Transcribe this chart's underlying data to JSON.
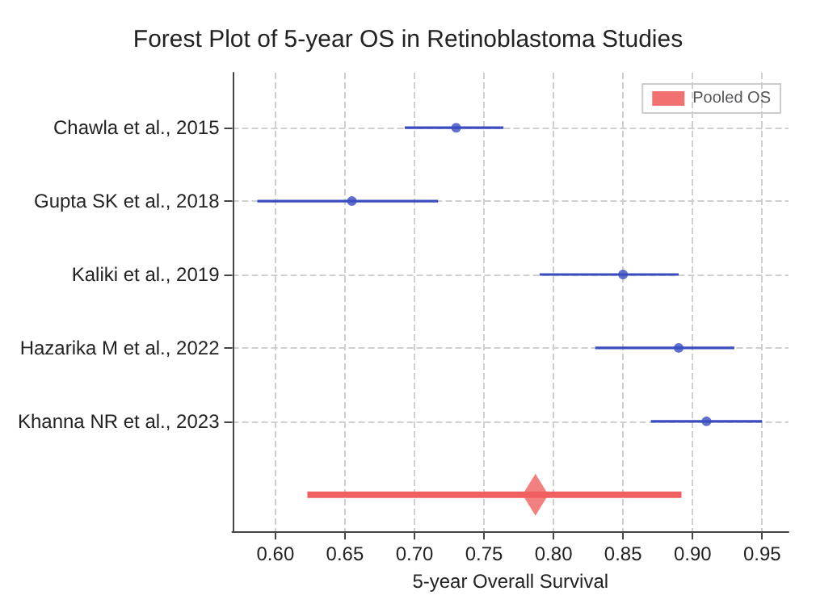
{
  "chart_data": {
    "type": "scatter",
    "title": "Forest Plot of 5-year OS in Retinoblastoma Studies",
    "xlabel": "5-year Overall Survival",
    "orientation": "horizontal",
    "categories": [
      "Chawla et al., 2015",
      "Gupta SK et al., 2018",
      "Kaliki et al., 2019",
      "Hazarika M et al., 2022",
      "Khanna NR et al., 2023",
      null
    ],
    "series": [
      {
        "color": "#3b4cc0",
        "marker": "circle",
        "values": [
          0.73,
          0.655,
          0.85,
          0.89,
          0.91,
          null
        ],
        "errors": [
          [
            0.693,
            0.764
          ],
          [
            0.587,
            0.717
          ],
          [
            0.79,
            0.89
          ],
          [
            0.83,
            0.93
          ],
          [
            0.87,
            0.95
          ],
          null
        ]
      },
      {
        "name": "Pooled OS",
        "color": "#f06060",
        "marker": "diamond",
        "values": [
          null,
          null,
          null,
          null,
          null,
          0.787
        ],
        "errors": [
          null,
          null,
          null,
          null,
          null,
          [
            0.623,
            0.892
          ]
        ]
      }
    ],
    "xlim": [
      0.569,
      0.969
    ],
    "xticks": [
      {
        "value": 0.6,
        "label": "0.60"
      },
      0.65,
      {
        "value": 0.7,
        "label": "0.70"
      },
      0.75,
      {
        "value": 0.8,
        "label": "0.80"
      },
      0.85,
      {
        "value": 0.9,
        "label": "0.90"
      },
      0.95
    ],
    "grid": true,
    "legend": "top right"
  }
}
